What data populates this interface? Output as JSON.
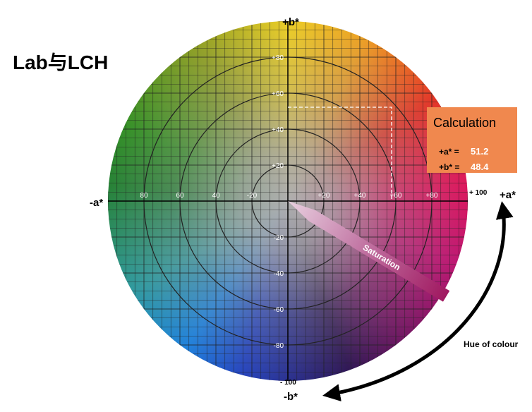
{
  "title": "Lab与LCH",
  "axes": {
    "b_pos": "+b*",
    "b_neg": "-b*",
    "a_neg": "-a*",
    "a_pos": "+a*",
    "a_max": "+ 100",
    "b_min": "- 100"
  },
  "ticks": {
    "horizontal": [
      "80",
      "60",
      "40",
      "-20",
      "+20",
      "+40",
      "+60",
      "+80"
    ],
    "vertical": [
      "+80",
      "+60",
      "+40",
      "+20",
      "-20",
      "-40",
      "-60",
      "-80"
    ]
  },
  "calculation": {
    "title": "Calculation",
    "rows": [
      {
        "label": "+a* =",
        "value": "51.2"
      },
      {
        "label": "+b* =",
        "value": "48.4"
      }
    ]
  },
  "saturation": "Saturation",
  "hue": "Hue of colour"
}
